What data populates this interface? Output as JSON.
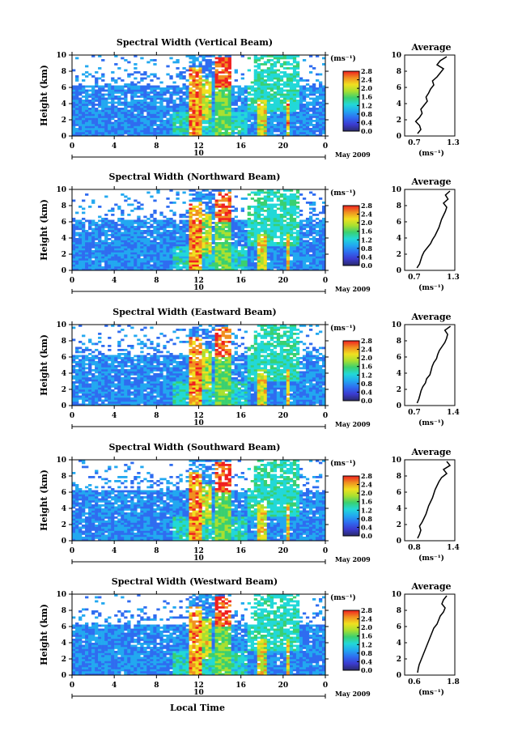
{
  "colors": {
    "white": "#ffffff",
    "background_blue": "#3a59d8",
    "colorbar_stops": [
      "#2a2a6a",
      "#3b3bd0",
      "#2f6cf0",
      "#22a8f0",
      "#22d8d8",
      "#3ad070",
      "#a8e030",
      "#f0e020",
      "#f09020",
      "#f02020"
    ]
  },
  "icons": {
    "tick_marks": "tick-mark-icon",
    "arrow_ends": "time-axis-arrow-icon"
  },
  "xlabel": "Local Time",
  "date_label": "May 2009",
  "date_day": "10",
  "colorbar_unit": "(ms⁻¹)",
  "colorbar_ticks": [
    "0.0",
    "0.4",
    "0.8",
    "1.2",
    "1.6",
    "2.0",
    "2.4",
    "2.8"
  ],
  "height_ticks": [
    "0",
    "2",
    "4",
    "6",
    "8",
    "10"
  ],
  "time_ticks": [
    "0",
    "4",
    "8",
    "12",
    "16",
    "20",
    "0"
  ],
  "avg_title": "Average",
  "avg_unit": "(ms⁻¹)",
  "ylabel": "Height (km)",
  "panels": [
    {
      "title": "Spectral Width (Vertical Beam)",
      "avg_xticks": [
        "0.7",
        "1.3"
      ]
    },
    {
      "title": "Spectral Width (Northward Beam)",
      "avg_xticks": [
        "0.7",
        "1.3"
      ]
    },
    {
      "title": "Spectral Width (Eastward Beam)",
      "avg_xticks": [
        "0.7",
        "1.4"
      ]
    },
    {
      "title": "Spectral Width (Southward Beam)",
      "avg_xticks": [
        "0.8",
        "1.4"
      ]
    },
    {
      "title": "Spectral Width (Westward Beam)",
      "avg_xticks": [
        "0.6",
        "1.8"
      ]
    }
  ],
  "chart_data": [
    {
      "type": "heatmap",
      "title": "Spectral Width (Vertical Beam)",
      "xlabel": "Local Time",
      "ylabel": "Height (km)",
      "xlim": [
        0,
        24
      ],
      "ylim": [
        0,
        10
      ],
      "colorbar": {
        "label": "(ms⁻¹)",
        "range": [
          0.0,
          2.8
        ]
      },
      "side_profile": {
        "title": "Average",
        "xlabel": "(ms⁻¹)",
        "xlim": [
          0.7,
          1.3
        ],
        "ylim": [
          0,
          10
        ],
        "height_km": [
          0.3,
          0.8,
          1.3,
          1.8,
          2.3,
          2.8,
          3.3,
          3.8,
          4.3,
          4.8,
          5.3,
          5.8,
          6.3,
          6.8,
          7.3,
          7.8,
          8.3,
          8.8,
          9.3,
          9.8
        ],
        "value": [
          0.75,
          0.8,
          0.78,
          0.72,
          0.78,
          0.82,
          0.8,
          0.85,
          0.9,
          0.88,
          0.92,
          0.95,
          1.0,
          0.98,
          1.05,
          1.1,
          1.15,
          1.05,
          1.1,
          1.2
        ]
      }
    },
    {
      "type": "heatmap",
      "title": "Spectral Width (Northward Beam)",
      "xlabel": "Local Time",
      "ylabel": "Height (km)",
      "xlim": [
        0,
        24
      ],
      "ylim": [
        0,
        10
      ],
      "colorbar": {
        "label": "(ms⁻¹)",
        "range": [
          0.0,
          2.8
        ]
      },
      "side_profile": {
        "title": "Average",
        "xlabel": "(ms⁻¹)",
        "xlim": [
          0.7,
          1.3
        ],
        "ylim": [
          0,
          10
        ],
        "height_km": [
          0.3,
          0.8,
          1.3,
          1.8,
          2.3,
          2.8,
          3.3,
          3.8,
          4.3,
          4.8,
          5.3,
          5.8,
          6.3,
          6.8,
          7.3,
          7.8,
          8.3,
          8.8,
          9.3,
          9.8
        ],
        "value": [
          0.74,
          0.78,
          0.8,
          0.82,
          0.85,
          0.9,
          0.95,
          0.98,
          1.02,
          1.05,
          1.08,
          1.1,
          1.12,
          1.15,
          1.18,
          1.2,
          1.15,
          1.22,
          1.18,
          1.25
        ]
      }
    },
    {
      "type": "heatmap",
      "title": "Spectral Width (Eastward Beam)",
      "xlabel": "Local Time",
      "ylabel": "Height (km)",
      "xlim": [
        0,
        24
      ],
      "ylim": [
        0,
        10
      ],
      "colorbar": {
        "label": "(ms⁻¹)",
        "range": [
          0.0,
          2.8
        ]
      },
      "side_profile": {
        "title": "Average",
        "xlabel": "(ms⁻¹)",
        "xlim": [
          0.7,
          1.4
        ],
        "ylim": [
          0,
          10
        ],
        "height_km": [
          0.3,
          0.8,
          1.3,
          1.8,
          2.3,
          2.8,
          3.3,
          3.8,
          4.3,
          4.8,
          5.3,
          5.8,
          6.3,
          6.8,
          7.3,
          7.8,
          8.3,
          8.8,
          9.3,
          9.8
        ],
        "value": [
          0.75,
          0.78,
          0.8,
          0.82,
          0.85,
          0.9,
          0.92,
          0.98,
          1.0,
          1.02,
          1.05,
          1.1,
          1.12,
          1.15,
          1.2,
          1.25,
          1.28,
          1.3,
          1.25,
          1.35
        ]
      }
    },
    {
      "type": "heatmap",
      "title": "Spectral Width (Southward Beam)",
      "xlabel": "Local Time",
      "ylabel": "Height (km)",
      "xlim": [
        0,
        24
      ],
      "ylim": [
        0,
        10
      ],
      "colorbar": {
        "label": "(ms⁻¹)",
        "range": [
          0.0,
          2.8
        ]
      },
      "side_profile": {
        "title": "Average",
        "xlabel": "(ms⁻¹)",
        "xlim": [
          0.8,
          1.4
        ],
        "ylim": [
          0,
          10
        ],
        "height_km": [
          0.3,
          0.8,
          1.3,
          1.8,
          2.3,
          2.8,
          3.3,
          3.8,
          4.3,
          4.8,
          5.3,
          5.8,
          6.3,
          6.8,
          7.3,
          7.8,
          8.3,
          8.8,
          9.3,
          9.8
        ],
        "value": [
          0.85,
          0.88,
          0.9,
          0.88,
          0.92,
          0.95,
          0.98,
          1.0,
          1.02,
          1.05,
          1.08,
          1.1,
          1.12,
          1.15,
          1.18,
          1.22,
          1.3,
          1.25,
          1.35,
          1.3
        ]
      }
    },
    {
      "type": "heatmap",
      "title": "Spectral Width (Westward Beam)",
      "xlabel": "Local Time",
      "ylabel": "Height (km)",
      "xlim": [
        0,
        24
      ],
      "ylim": [
        0,
        10
      ],
      "colorbar": {
        "label": "(ms⁻¹)",
        "range": [
          0.0,
          2.8
        ]
      },
      "side_profile": {
        "title": "Average",
        "xlabel": "(ms⁻¹)",
        "xlim": [
          0.6,
          1.8
        ],
        "ylim": [
          0,
          10
        ],
        "height_km": [
          0.3,
          0.8,
          1.3,
          1.8,
          2.3,
          2.8,
          3.3,
          3.8,
          4.3,
          4.8,
          5.3,
          5.8,
          6.3,
          6.8,
          7.3,
          7.8,
          8.3,
          8.8,
          9.3,
          9.8
        ],
        "value": [
          0.7,
          0.72,
          0.75,
          0.8,
          0.85,
          0.9,
          0.95,
          1.0,
          1.05,
          1.1,
          1.15,
          1.2,
          1.3,
          1.35,
          1.4,
          1.5,
          1.55,
          1.45,
          1.5,
          1.6
        ]
      }
    }
  ]
}
